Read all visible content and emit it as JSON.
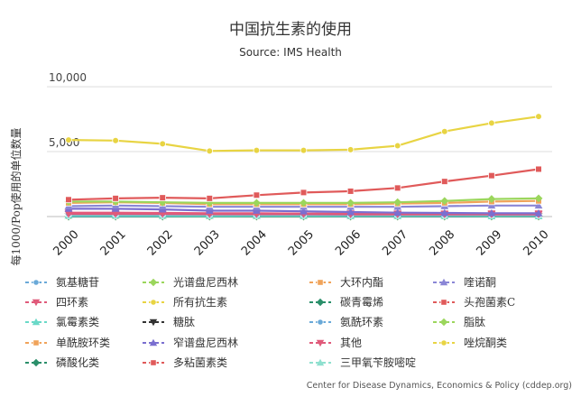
{
  "chart_data": {
    "type": "line",
    "title": "中国抗生素的使用",
    "subtitle": "Source: IMS Health",
    "ylabel": "每1000/Pop使用的单位数量",
    "xlabel": "",
    "credit": "Center for Disease Dynamics, Economics & Policy (cddep.org)",
    "ylim": [
      0,
      10700
    ],
    "y_ticks": [
      {
        "value": 5000,
        "label": "5,000"
      },
      {
        "value": 10000,
        "label": "10,000"
      }
    ],
    "grid": true,
    "legend_position": "bottom",
    "x": [
      "2000",
      "2001",
      "2002",
      "2003",
      "2004",
      "2005",
      "2006",
      "2007",
      "2008",
      "2009",
      "2010"
    ],
    "series": [
      {
        "name": "所有抗生素",
        "color": "#e8d443",
        "marker": "circle",
        "values": [
          5900,
          5850,
          5600,
          5050,
          5100,
          5100,
          5150,
          5450,
          6550,
          7200,
          7700
        ]
      },
      {
        "name": "头孢菌素C",
        "color": "#e05a5a",
        "marker": "square",
        "values": [
          1300,
          1400,
          1450,
          1400,
          1650,
          1850,
          1950,
          2200,
          2700,
          3150,
          3650
        ]
      },
      {
        "name": "光谱盘尼西林",
        "color": "#9bd65c",
        "marker": "diamond",
        "values": [
          1150,
          1150,
          1100,
          1050,
          1050,
          1050,
          1050,
          1100,
          1200,
          1350,
          1400
        ]
      },
      {
        "name": "大环内酯",
        "color": "#f0a35a",
        "marker": "square",
        "values": [
          1050,
          1100,
          1050,
          950,
          950,
          950,
          950,
          1000,
          1050,
          1150,
          1200
        ]
      },
      {
        "name": "喹诺酮",
        "color": "#8a86d6",
        "marker": "triangle",
        "values": [
          800,
          850,
          800,
          750,
          750,
          750,
          750,
          750,
          800,
          850,
          850
        ]
      },
      {
        "name": "窄谱盘尼西林",
        "color": "#7a6fd0",
        "marker": "triangle",
        "values": [
          600,
          600,
          550,
          450,
          450,
          400,
          350,
          300,
          280,
          260,
          250
        ]
      },
      {
        "name": "四环素",
        "color": "#e05a7a",
        "marker": "triangle-down",
        "values": [
          300,
          300,
          280,
          250,
          250,
          230,
          230,
          220,
          220,
          230,
          230
        ]
      },
      {
        "name": "其他",
        "color": "#e05a7a",
        "marker": "triangle-down",
        "values": [
          200,
          200,
          200,
          180,
          180,
          180,
          170,
          170,
          170,
          170,
          170
        ]
      },
      {
        "name": "氨基糖苷",
        "color": "#6aa9d8",
        "marker": "circle",
        "values": [
          180,
          180,
          170,
          160,
          150,
          150,
          140,
          140,
          130,
          130,
          120
        ]
      },
      {
        "name": "氯霉素类",
        "color": "#6ad9c8",
        "marker": "triangle",
        "values": [
          80,
          80,
          70,
          60,
          60,
          50,
          50,
          50,
          50,
          40,
          40
        ]
      },
      {
        "name": "氨酰环素",
        "color": "#6aa9d8",
        "marker": "circle",
        "values": [
          40,
          40,
          40,
          40,
          40,
          40,
          40,
          40,
          40,
          40,
          40
        ]
      },
      {
        "name": "碳青霉烯",
        "color": "#2a8f6a",
        "marker": "diamond",
        "values": [
          10,
          10,
          10,
          10,
          15,
          15,
          20,
          20,
          25,
          30,
          35
        ]
      },
      {
        "name": "糖肽",
        "color": "#333333",
        "marker": "triangle-down",
        "values": [
          10,
          10,
          10,
          10,
          10,
          10,
          10,
          10,
          10,
          15,
          15
        ]
      },
      {
        "name": "脂肽",
        "color": "#9bd65c",
        "marker": "diamond",
        "values": [
          5,
          5,
          5,
          5,
          5,
          5,
          5,
          5,
          5,
          5,
          5
        ]
      },
      {
        "name": "单酰胺环类",
        "color": "#f0a35a",
        "marker": "square",
        "values": [
          10,
          10,
          10,
          10,
          10,
          10,
          10,
          10,
          10,
          10,
          10
        ]
      },
      {
        "name": "唑烷酮类",
        "color": "#e8d443",
        "marker": "circle",
        "values": [
          0,
          0,
          0,
          0,
          0,
          0,
          5,
          5,
          5,
          5,
          5
        ]
      },
      {
        "name": "磷酸化类",
        "color": "#2a8f6a",
        "marker": "diamond",
        "values": [
          20,
          20,
          20,
          20,
          20,
          20,
          20,
          20,
          20,
          20,
          20
        ]
      },
      {
        "name": "多粘菌素类",
        "color": "#e05a5a",
        "marker": "square",
        "values": [
          5,
          5,
          5,
          5,
          5,
          5,
          5,
          5,
          5,
          5,
          5
        ]
      },
      {
        "name": "三甲氧苄胺嘧啶",
        "color": "#8fe0cf",
        "marker": "triangle",
        "values": [
          30,
          30,
          30,
          30,
          30,
          30,
          30,
          30,
          30,
          30,
          30
        ]
      }
    ],
    "legend_items": [
      "氨基糖苷",
      "光谱盘尼西林",
      "大环内酯",
      "喹诺酮",
      "四环素",
      "所有抗生素",
      "碳青霉烯",
      "头孢菌素C",
      "氯霉素类",
      "糖肽",
      "氨酰环素",
      "脂肽",
      "单酰胺环类",
      "窄谱盘尼西林",
      "其他",
      "唑烷酮类",
      "磷酸化类",
      "多粘菌素类",
      "三甲氧苄胺嘧啶"
    ]
  }
}
